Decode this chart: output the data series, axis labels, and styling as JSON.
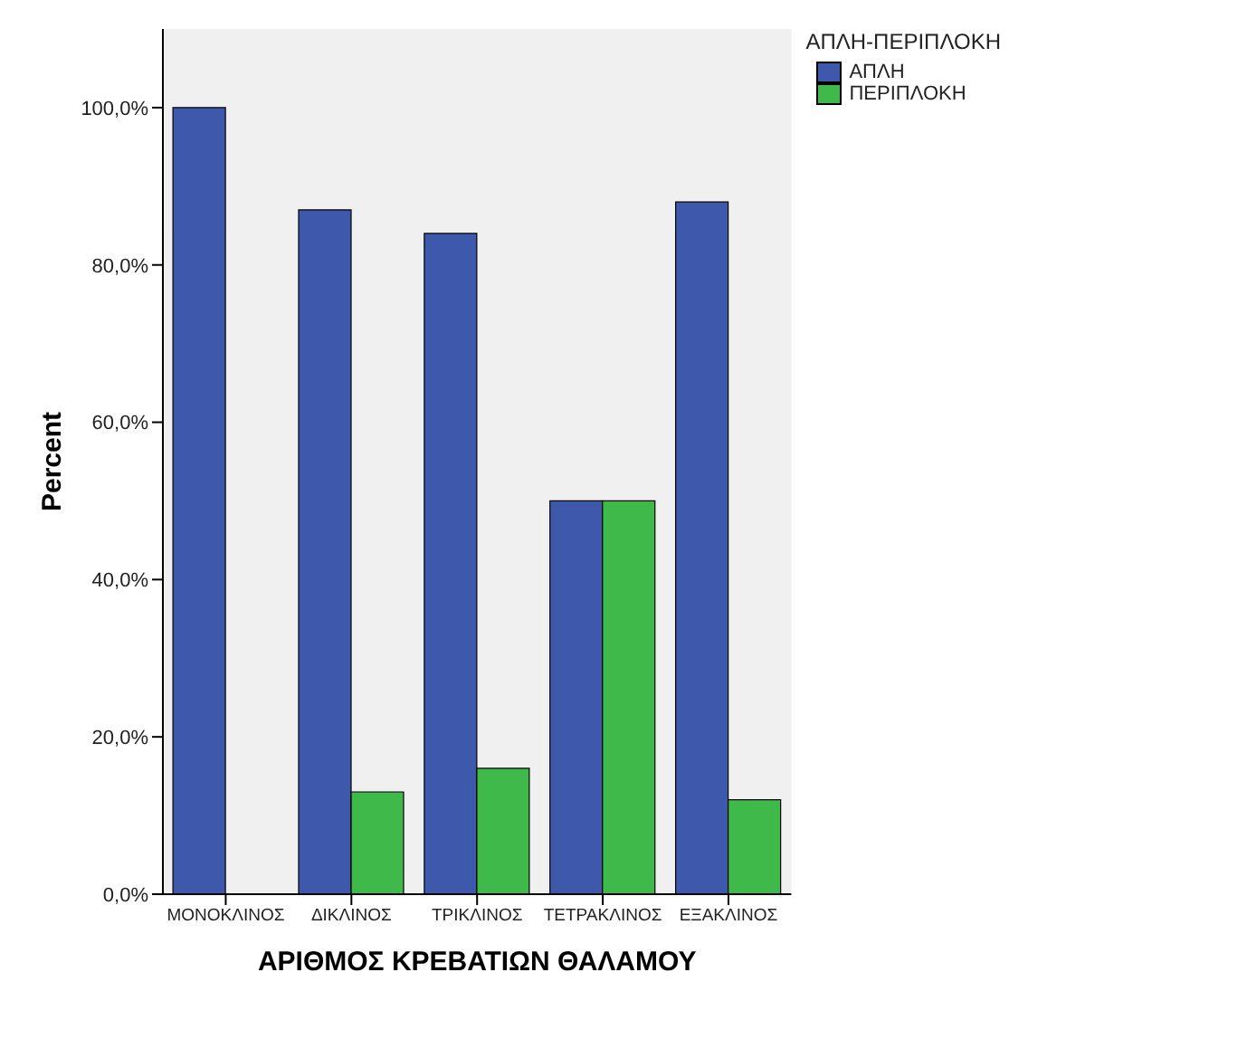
{
  "chart_data": {
    "type": "bar",
    "xlabel": "ΑΡΙΘΜΟΣ ΚΡΕΒΑΤΙΩΝ ΘΑΛΑΜΟΥ",
    "ylabel": "Percent",
    "legend_title": "ΑΠΛΗ-ΠΕΡΙΠΛΟΚΗ",
    "categories": [
      "ΜΟΝΟΚΛΙΝΟΣ",
      "ΔΙΚΛΙΝΟΣ",
      "ΤΡΙΚΛΙΝΟΣ",
      "ΤΕΤΡΑΚΛΙΝΟΣ",
      "ΕΞΑΚΛΙΝΟΣ"
    ],
    "series": [
      {
        "name": "ΑΠΛΗ",
        "color": "#3e58ac",
        "values": [
          100,
          87,
          84,
          50,
          88
        ]
      },
      {
        "name": "ΠΕΡΙΠΛΟΚΗ",
        "color": "#3eb94a",
        "values": [
          0,
          13,
          16,
          50,
          12
        ]
      }
    ],
    "ylim": [
      0,
      110
    ],
    "yticks": [
      {
        "value": 0,
        "label": "0,0%"
      },
      {
        "value": 20,
        "label": "20,0%"
      },
      {
        "value": 40,
        "label": "40,0%"
      },
      {
        "value": 60,
        "label": "60,0%"
      },
      {
        "value": 80,
        "label": "80,0%"
      },
      {
        "value": 100,
        "label": "100,0%"
      }
    ],
    "grid": false,
    "legend": "top right"
  }
}
